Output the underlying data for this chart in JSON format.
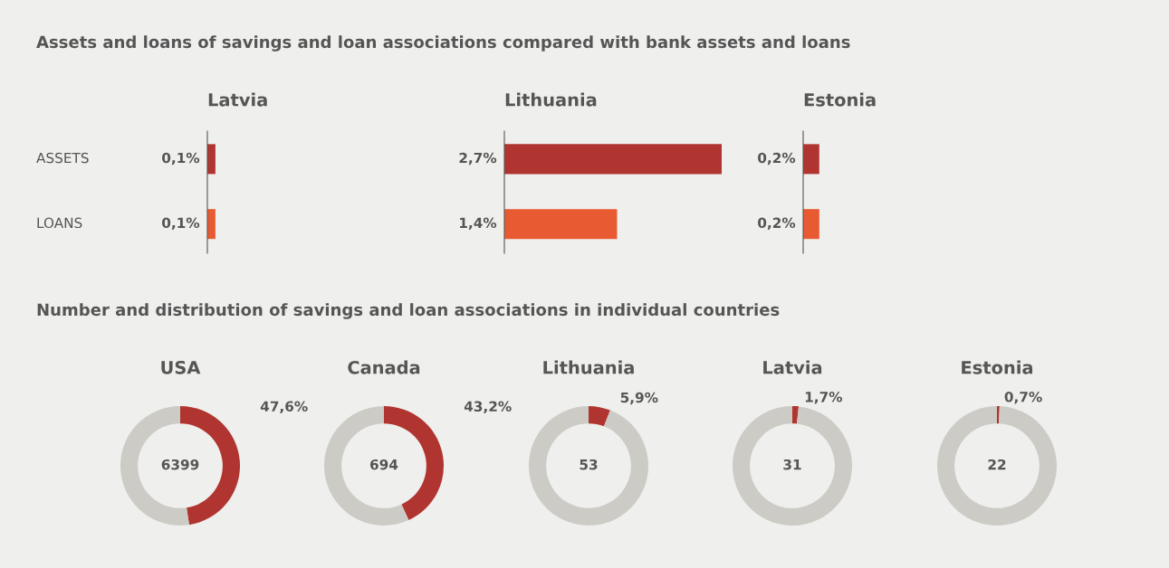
{
  "chart_data": [
    {
      "type": "bar",
      "orientation": "horizontal",
      "title": "Latvia",
      "annotations": [
        "Assets and loans of savings and loan associations compared with bank assets and loans"
      ],
      "categories": [
        "ASSETS",
        "LOANS"
      ],
      "values": [
        0.1,
        0.1
      ],
      "value_labels": [
        "0,1%",
        "0,1%"
      ],
      "colors": [
        "#b03530",
        "#e85a32"
      ],
      "tick_labels": "y"
    },
    {
      "type": "bar",
      "orientation": "horizontal",
      "title": "Lithuania",
      "categories": [
        null,
        null
      ],
      "values": [
        2.7,
        1.4
      ],
      "value_labels": [
        "2,7%",
        "1,4%"
      ],
      "colors": [
        "#b03530",
        "#e85a32"
      ]
    },
    {
      "type": "bar",
      "orientation": "horizontal",
      "title": "Estonia",
      "categories": [
        null,
        null
      ],
      "values": [
        0.2,
        0.2
      ],
      "value_labels": [
        "0,2%",
        "0,2%"
      ],
      "colors": [
        "#b03530",
        "#e85a32"
      ]
    },
    {
      "type": "donut",
      "title": "USA",
      "annotations": [
        "Number and distribution of savings and loan associations in individual countries",
        "6399"
      ],
      "categories": [
        null,
        null
      ],
      "values": [
        47.6,
        52.4
      ],
      "value_labels": [
        "47,6%",
        null
      ],
      "colors": [
        "#b03530",
        "#cccbc6"
      ]
    },
    {
      "type": "donut",
      "title": "Canada",
      "annotations": [
        "694"
      ],
      "categories": [
        null,
        null
      ],
      "values": [
        43.2,
        56.8
      ],
      "value_labels": [
        "43,2%",
        null
      ],
      "colors": [
        "#b03530",
        "#cccbc6"
      ]
    },
    {
      "type": "donut",
      "title": "Lithuania",
      "annotations": [
        "53"
      ],
      "categories": [
        null,
        null
      ],
      "values": [
        5.9,
        94.1
      ],
      "value_labels": [
        "5,9%",
        null
      ],
      "colors": [
        "#b03530",
        "#cccbc6"
      ]
    },
    {
      "type": "donut",
      "title": "Latvia",
      "annotations": [
        "31"
      ],
      "categories": [
        null,
        null
      ],
      "values": [
        1.7,
        98.3
      ],
      "value_labels": [
        "1,7%",
        null
      ],
      "colors": [
        "#b03530",
        "#cccbc6"
      ]
    },
    {
      "type": "donut",
      "title": "Estonia",
      "annotations": [
        "22"
      ],
      "categories": [
        null,
        null
      ],
      "values": [
        0.7,
        99.3
      ],
      "value_labels": [
        "0,7%",
        null
      ],
      "colors": [
        "#b03530",
        "#cccbc6"
      ]
    }
  ]
}
